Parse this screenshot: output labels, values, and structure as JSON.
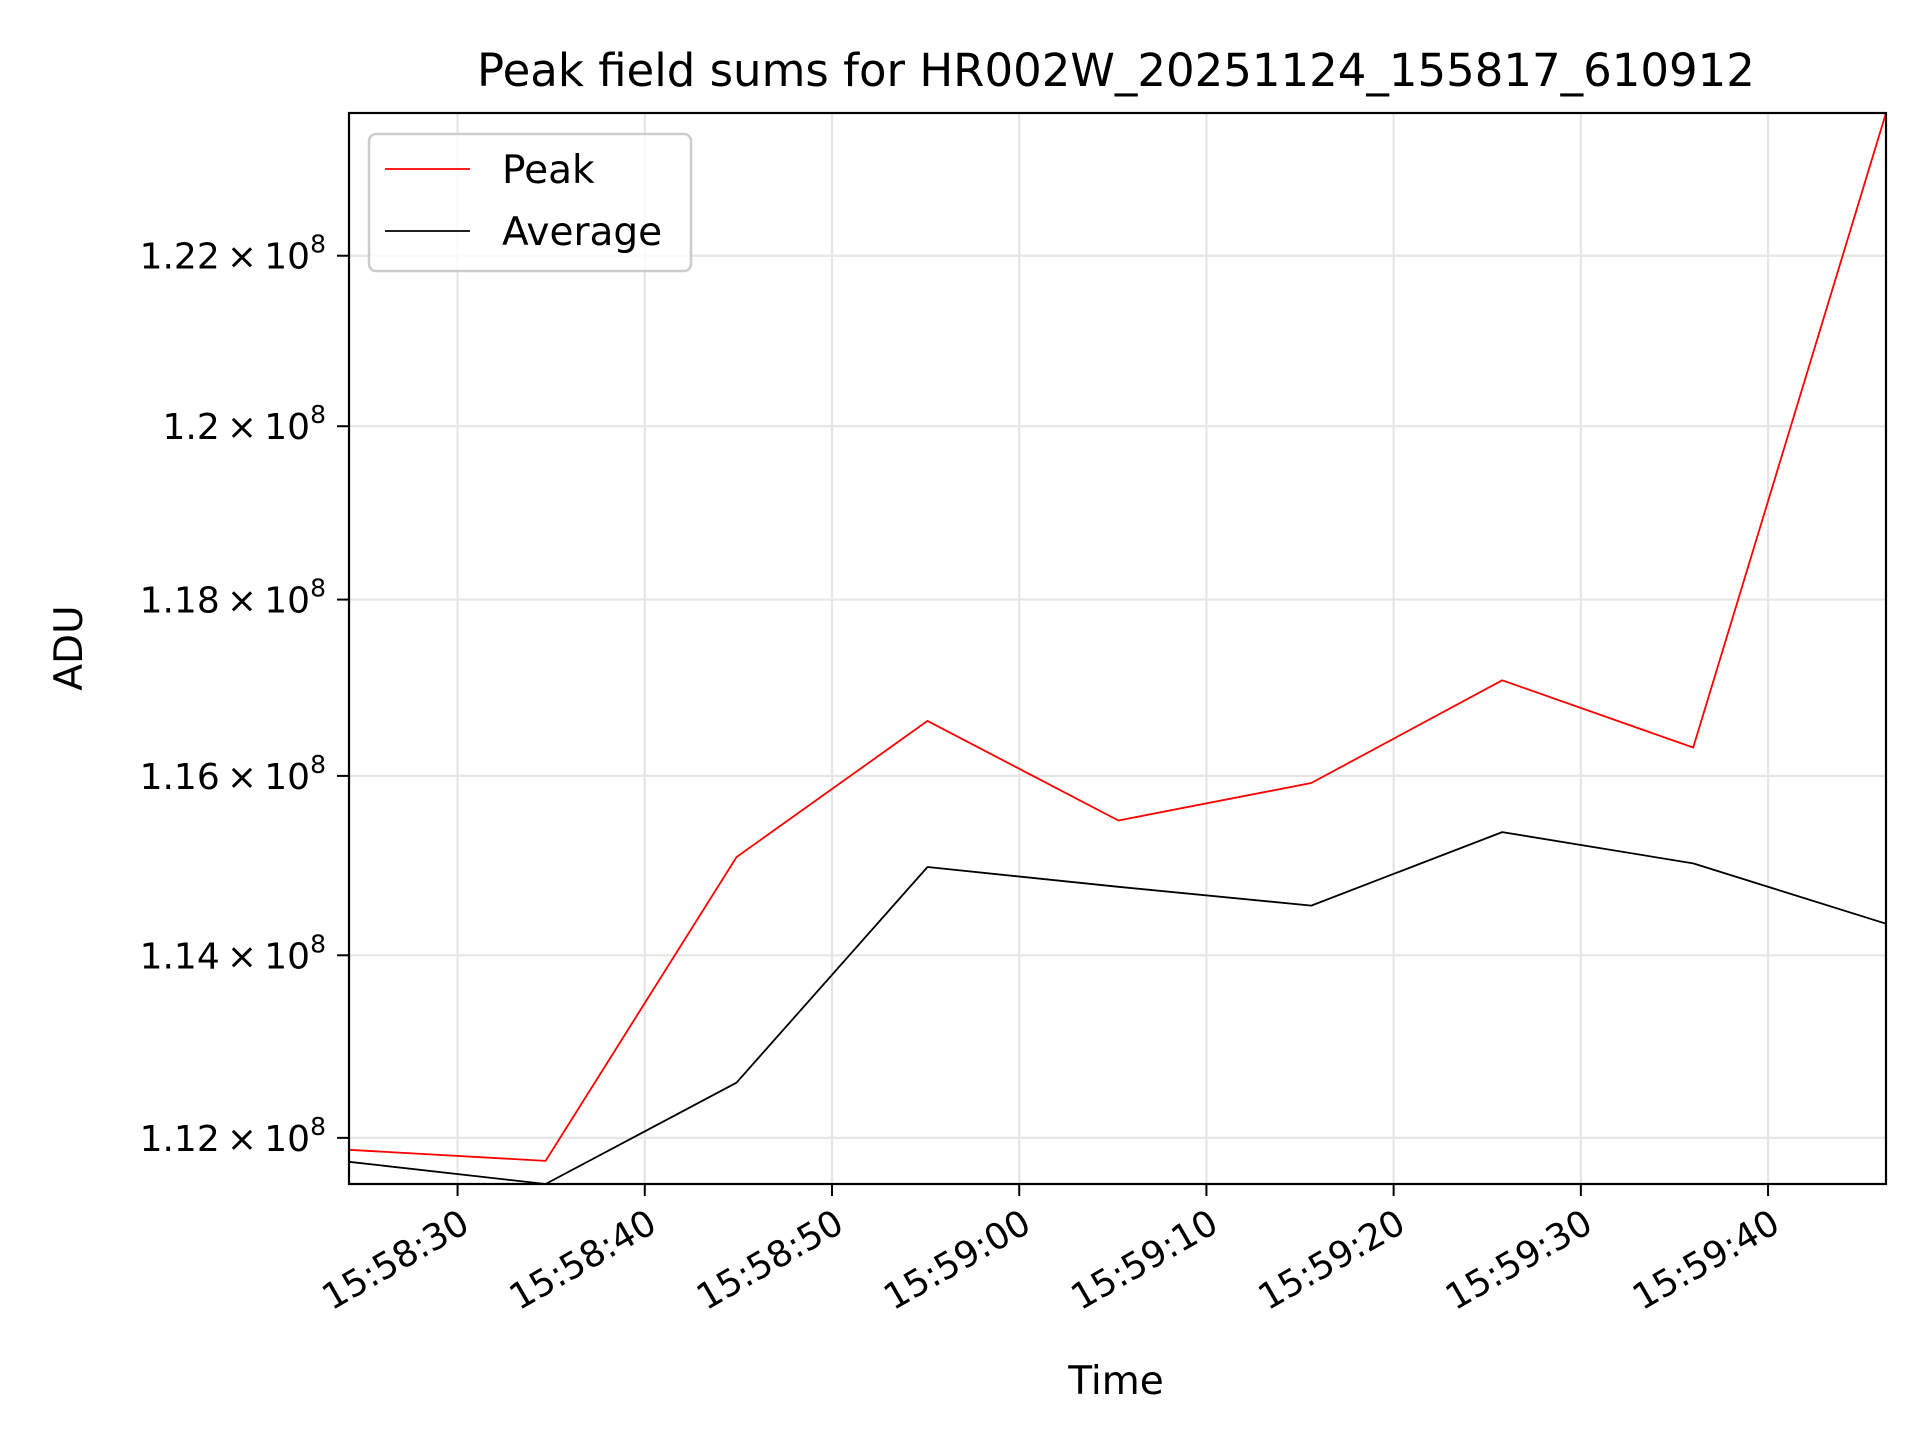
{
  "chart_data": {
    "type": "line",
    "title": "Peak field sums for HR002W_20251124_155817_610912",
    "xlabel": "Time",
    "ylabel": "ADU",
    "y_scale": "log",
    "ylim": [
      111500000,
      123700000
    ],
    "xlim": [
      "15:58:24.2",
      "15:59:46.3"
    ],
    "grid": true,
    "legend_position": "top-left",
    "x_ticks": [
      {
        "time": "15:58:30",
        "label": "15:58:30"
      },
      {
        "time": "15:58:40",
        "label": "15:58:40"
      },
      {
        "time": "15:58:50",
        "label": "15:58:50"
      },
      {
        "time": "15:59:00",
        "label": "15:59:00"
      },
      {
        "time": "15:59:10",
        "label": "15:59:10"
      },
      {
        "time": "15:59:20",
        "label": "15:59:20"
      },
      {
        "time": "15:59:30",
        "label": "15:59:30"
      },
      {
        "time": "15:59:40",
        "label": "15:59:40"
      }
    ],
    "y_ticks": [
      {
        "value": 112000000,
        "mantissa": "1.12",
        "exponent": "8"
      },
      {
        "value": 114000000,
        "mantissa": "1.14",
        "exponent": "8"
      },
      {
        "value": 116000000,
        "mantissa": "1.16",
        "exponent": "8"
      },
      {
        "value": 118000000,
        "mantissa": "1.18",
        "exponent": "8"
      },
      {
        "value": 120000000,
        "mantissa": "1.2",
        "exponent": "8"
      },
      {
        "value": 122000000,
        "mantissa": "1.22",
        "exponent": "8"
      }
    ],
    "times": [
      "15:58:24.2",
      "15:58:34.7",
      "15:58:44.9",
      "15:58:55.1",
      "15:59:05.3",
      "15:59:15.6",
      "15:59:25.8",
      "15:59:36.0",
      "15:59:46.3"
    ],
    "series": [
      {
        "name": "Peak",
        "color": "#ff0000",
        "values": [
          111870000,
          111750000,
          115090000,
          116620000,
          115500000,
          115920000,
          117080000,
          116320000,
          123700000
        ]
      },
      {
        "name": "Average",
        "color": "#000000",
        "values": [
          111740000,
          111500000,
          112600000,
          114980000,
          114760000,
          114550000,
          115370000,
          115020000,
          114350000
        ]
      }
    ]
  }
}
